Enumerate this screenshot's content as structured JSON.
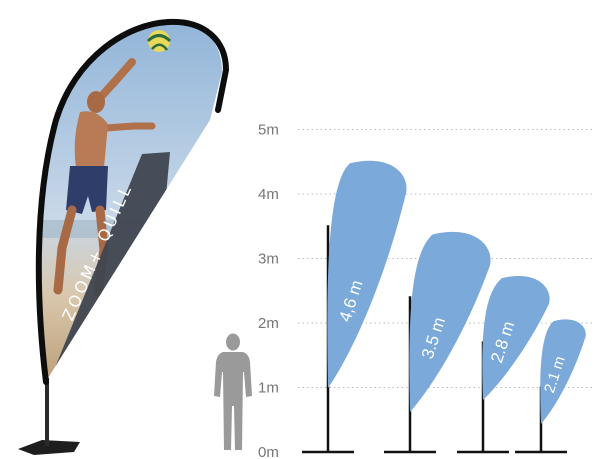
{
  "scale": {
    "labels": [
      "0m",
      "1m",
      "2m",
      "3m",
      "4m",
      "5m"
    ]
  },
  "flags": [
    {
      "label": "4,6 m",
      "height_m": 4.6
    },
    {
      "label": "3.5 m",
      "height_m": 3.5
    },
    {
      "label": "2.8 m",
      "height_m": 2.8
    },
    {
      "label": "2.1 m",
      "height_m": 2.1
    }
  ],
  "banner": {
    "brand_text": "ZOOM+ QUILL"
  },
  "colors": {
    "flag_fill": "#7aa9da",
    "pole": "#111111",
    "gridline": "#bbbbbb",
    "brand_panel": "#3f4650",
    "silhouette": "#9a9a9a",
    "sky": "#b8cbe0",
    "sand": "#c9b08e"
  }
}
